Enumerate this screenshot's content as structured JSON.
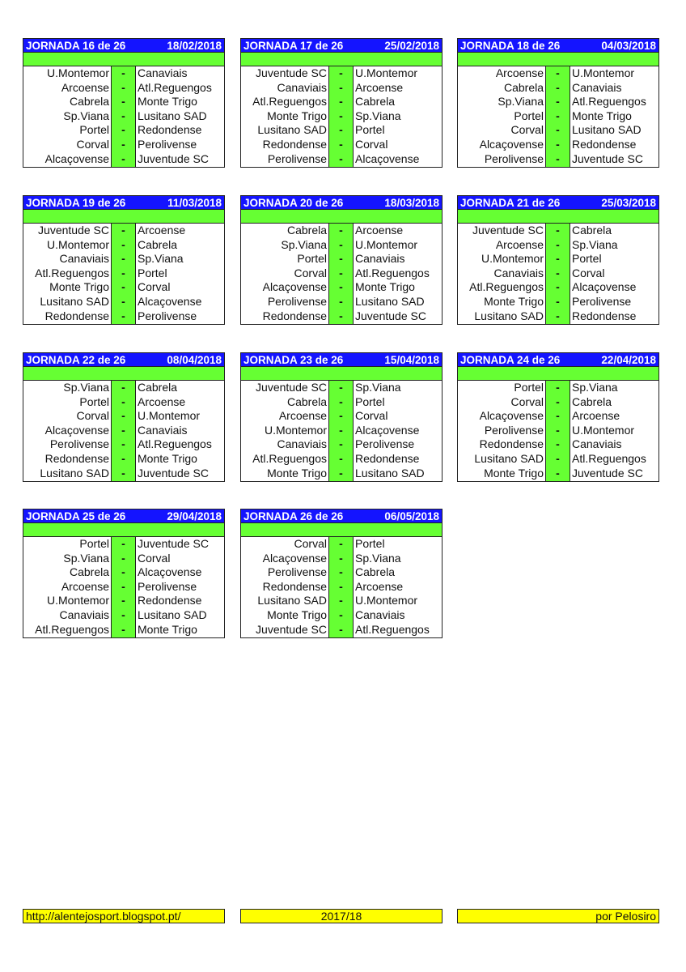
{
  "colors": {
    "header": "#1414ff",
    "accent": "#66ff33",
    "footer": "#ffff00"
  },
  "separator": "-",
  "jornadas": [
    {
      "title": "JORNADA 16 de 26",
      "date": "18/02/2018",
      "matches": [
        [
          "U.Montemor",
          "Canaviais"
        ],
        [
          "Arcoense",
          "Atl.Reguengos"
        ],
        [
          "Cabrela",
          "Monte Trigo"
        ],
        [
          "Sp.Viana",
          "Lusitano SAD"
        ],
        [
          "Portel",
          "Redondense"
        ],
        [
          "Corval",
          "Perolivense"
        ],
        [
          "Alcaçovense",
          "Juventude SC"
        ]
      ]
    },
    {
      "title": "JORNADA 17 de 26",
      "date": "25/02/2018",
      "matches": [
        [
          "Juventude SC",
          "U.Montemor"
        ],
        [
          "Canaviais",
          "Arcoense"
        ],
        [
          "Atl.Reguengos",
          "Cabrela"
        ],
        [
          "Monte Trigo",
          "Sp.Viana"
        ],
        [
          "Lusitano SAD",
          "Portel"
        ],
        [
          "Redondense",
          "Corval"
        ],
        [
          "Perolivense",
          "Alcaçovense"
        ]
      ]
    },
    {
      "title": "JORNADA 18 de 26",
      "date": "04/03/2018",
      "matches": [
        [
          "Arcoense",
          "U.Montemor"
        ],
        [
          "Cabrela",
          "Canaviais"
        ],
        [
          "Sp.Viana",
          "Atl.Reguengos"
        ],
        [
          "Portel",
          "Monte Trigo"
        ],
        [
          "Corval",
          "Lusitano SAD"
        ],
        [
          "Alcaçovense",
          "Redondense"
        ],
        [
          "Perolivense",
          "Juventude SC"
        ]
      ]
    },
    {
      "title": "JORNADA 19 de 26",
      "date": "11/03/2018",
      "matches": [
        [
          "Juventude SC",
          "Arcoense"
        ],
        [
          "U.Montemor",
          "Cabrela"
        ],
        [
          "Canaviais",
          "Sp.Viana"
        ],
        [
          "Atl.Reguengos",
          "Portel"
        ],
        [
          "Monte Trigo",
          "Corval"
        ],
        [
          "Lusitano SAD",
          "Alcaçovense"
        ],
        [
          "Redondense",
          "Perolivense"
        ]
      ]
    },
    {
      "title": "JORNADA 20 de 26",
      "date": "18/03/2018",
      "matches": [
        [
          "Cabrela",
          "Arcoense"
        ],
        [
          "Sp.Viana",
          "U.Montemor"
        ],
        [
          "Portel",
          "Canaviais"
        ],
        [
          "Corval",
          "Atl.Reguengos"
        ],
        [
          "Alcaçovense",
          "Monte Trigo"
        ],
        [
          "Perolivense",
          "Lusitano SAD"
        ],
        [
          "Redondense",
          "Juventude SC"
        ]
      ]
    },
    {
      "title": "JORNADA 21 de 26",
      "date": "25/03/2018",
      "matches": [
        [
          "Juventude SC",
          "Cabrela"
        ],
        [
          "Arcoense",
          "Sp.Viana"
        ],
        [
          "U.Montemor",
          "Portel"
        ],
        [
          "Canaviais",
          "Corval"
        ],
        [
          "Atl.Reguengos",
          "Alcaçovense"
        ],
        [
          "Monte Trigo",
          "Perolivense"
        ],
        [
          "Lusitano SAD",
          "Redondense"
        ]
      ]
    },
    {
      "title": "JORNADA 22 de 26",
      "date": "08/04/2018",
      "matches": [
        [
          "Sp.Viana",
          "Cabrela"
        ],
        [
          "Portel",
          "Arcoense"
        ],
        [
          "Corval",
          "U.Montemor"
        ],
        [
          "Alcaçovense",
          "Canaviais"
        ],
        [
          "Perolivense",
          "Atl.Reguengos"
        ],
        [
          "Redondense",
          "Monte Trigo"
        ],
        [
          "Lusitano SAD",
          "Juventude SC"
        ]
      ]
    },
    {
      "title": "JORNADA 23 de 26",
      "date": "15/04/2018",
      "matches": [
        [
          "Juventude SC",
          "Sp.Viana"
        ],
        [
          "Cabrela",
          "Portel"
        ],
        [
          "Arcoense",
          "Corval"
        ],
        [
          "U.Montemor",
          "Alcaçovense"
        ],
        [
          "Canaviais",
          "Perolivense"
        ],
        [
          "Atl.Reguengos",
          "Redondense"
        ],
        [
          "Monte Trigo",
          "Lusitano SAD"
        ]
      ]
    },
    {
      "title": "JORNADA 24 de 26",
      "date": "22/04/2018",
      "matches": [
        [
          "Portel",
          "Sp.Viana"
        ],
        [
          "Corval",
          "Cabrela"
        ],
        [
          "Alcaçovense",
          "Arcoense"
        ],
        [
          "Perolivense",
          "U.Montemor"
        ],
        [
          "Redondense",
          "Canaviais"
        ],
        [
          "Lusitano SAD",
          "Atl.Reguengos"
        ],
        [
          "Monte Trigo",
          "Juventude SC"
        ]
      ]
    },
    {
      "title": "JORNADA 25 de 26",
      "date": "29/04/2018",
      "matches": [
        [
          "Portel",
          "Juventude SC"
        ],
        [
          "Sp.Viana",
          "Corval"
        ],
        [
          "Cabrela",
          "Alcaçovense"
        ],
        [
          "Arcoense",
          "Perolivense"
        ],
        [
          "U.Montemor",
          "Redondense"
        ],
        [
          "Canaviais",
          "Lusitano SAD"
        ],
        [
          "Atl.Reguengos",
          "Monte Trigo"
        ]
      ]
    },
    {
      "title": "JORNADA 26 de 26",
      "date": "06/05/2018",
      "matches": [
        [
          "Corval",
          "Portel"
        ],
        [
          "Alcaçovense",
          "Sp.Viana"
        ],
        [
          "Perolivense",
          "Cabrela"
        ],
        [
          "Redondense",
          "Arcoense"
        ],
        [
          "Lusitano SAD",
          "U.Montemor"
        ],
        [
          "Monte Trigo",
          "Canaviais"
        ],
        [
          "Juventude SC",
          "Atl.Reguengos"
        ]
      ]
    }
  ],
  "footer": {
    "url": "http://alentejosport.blogspot.pt/",
    "season": "2017/18",
    "author": "por Pelosiro"
  }
}
